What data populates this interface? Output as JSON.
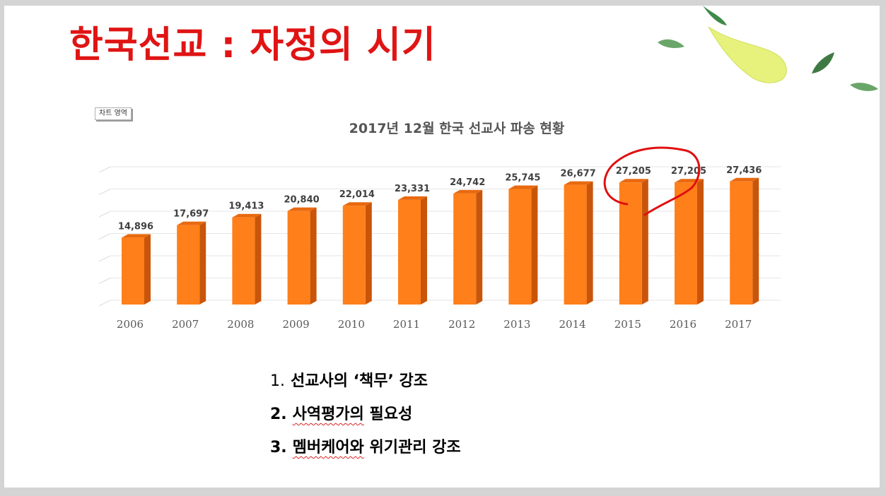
{
  "slide": {
    "title": "한국선교 : 자정의 시기",
    "chart_area_label": "차트 영역"
  },
  "chart_data": {
    "type": "bar",
    "title": "2017년 12월 한국 선교사 파송 현황",
    "categories": [
      "2006",
      "2007",
      "2008",
      "2009",
      "2010",
      "2011",
      "2012",
      "2013",
      "2014",
      "2015",
      "2016",
      "2017"
    ],
    "values": [
      14896,
      17697,
      19413,
      20840,
      22014,
      23331,
      24742,
      25745,
      26677,
      27205,
      27205,
      27436
    ],
    "data_labels": [
      "14,896",
      "17,697",
      "19,413",
      "20,840",
      "22,014",
      "23,331",
      "24,742",
      "25,745",
      "26,677",
      "27,205",
      "27,205",
      "27,436"
    ],
    "xlabel": "",
    "ylabel": "",
    "y_axis_labels_shown": false,
    "grid": true,
    "style": "3d-column",
    "bar_color": "#ff7f1a",
    "highlight": {
      "categories": [
        "2015",
        "2016"
      ],
      "marker": "hand-drawn red circle",
      "color": "#e01010"
    }
  },
  "points": [
    {
      "num": "1.",
      "text_plain": "선교사의 ‘책무’ 강조"
    },
    {
      "num": "2.",
      "text_underlined": "사역평가의",
      "text_rest": " 필요성"
    },
    {
      "num": "3.",
      "text_underlined": "멤버케어와",
      "text_rest": " 위기관리 강조"
    }
  ],
  "colors": {
    "title": "#e01414",
    "bar_front": "#ff7f1a",
    "bar_side": "#c9550a",
    "bar_top": "#e8690f",
    "annotation": "#e01010",
    "leaf_dark": "#3f8a4a",
    "leaf_light": "#dff07a"
  }
}
